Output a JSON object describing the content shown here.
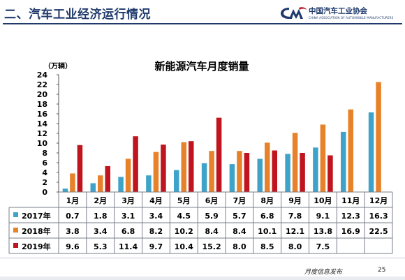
{
  "header": {
    "section_title": "二、汽车工业经济运行情况",
    "logo_text": "中国汽车工业协会",
    "logo_subtext": "CHINA ASSOCIATION OF AUTOMOBILE MANUFACTURERS"
  },
  "footer": {
    "label": "月度信息发布",
    "page": "25"
  },
  "chart_data": {
    "type": "bar",
    "title": "新能源汽车月度销量",
    "ylabel": "（万辆）",
    "ylim": [
      0,
      24
    ],
    "yticks": [
      0,
      2,
      4,
      6,
      8,
      10,
      12,
      14,
      16,
      18,
      20,
      22,
      24
    ],
    "grid": false,
    "legend": "table-left",
    "categories": [
      "1月",
      "2月",
      "3月",
      "4月",
      "5月",
      "6月",
      "7月",
      "8月",
      "9月",
      "10月",
      "11月",
      "12月"
    ],
    "series": [
      {
        "name": "2017年",
        "color": "#3fa3c9",
        "values": [
          0.7,
          1.8,
          3.1,
          3.4,
          4.5,
          5.9,
          5.7,
          6.8,
          7.8,
          9.1,
          12.3,
          16.3
        ]
      },
      {
        "name": "2018年",
        "color": "#e8822a",
        "values": [
          3.8,
          3.4,
          6.8,
          8.2,
          10.2,
          8.4,
          8.4,
          10.1,
          12.1,
          13.8,
          16.9,
          22.5
        ]
      },
      {
        "name": "2019年",
        "color": "#c0141e",
        "values": [
          9.6,
          5.3,
          11.4,
          9.7,
          10.4,
          15.2,
          8.0,
          8.5,
          8.0,
          7.5,
          null,
          null
        ]
      }
    ]
  }
}
